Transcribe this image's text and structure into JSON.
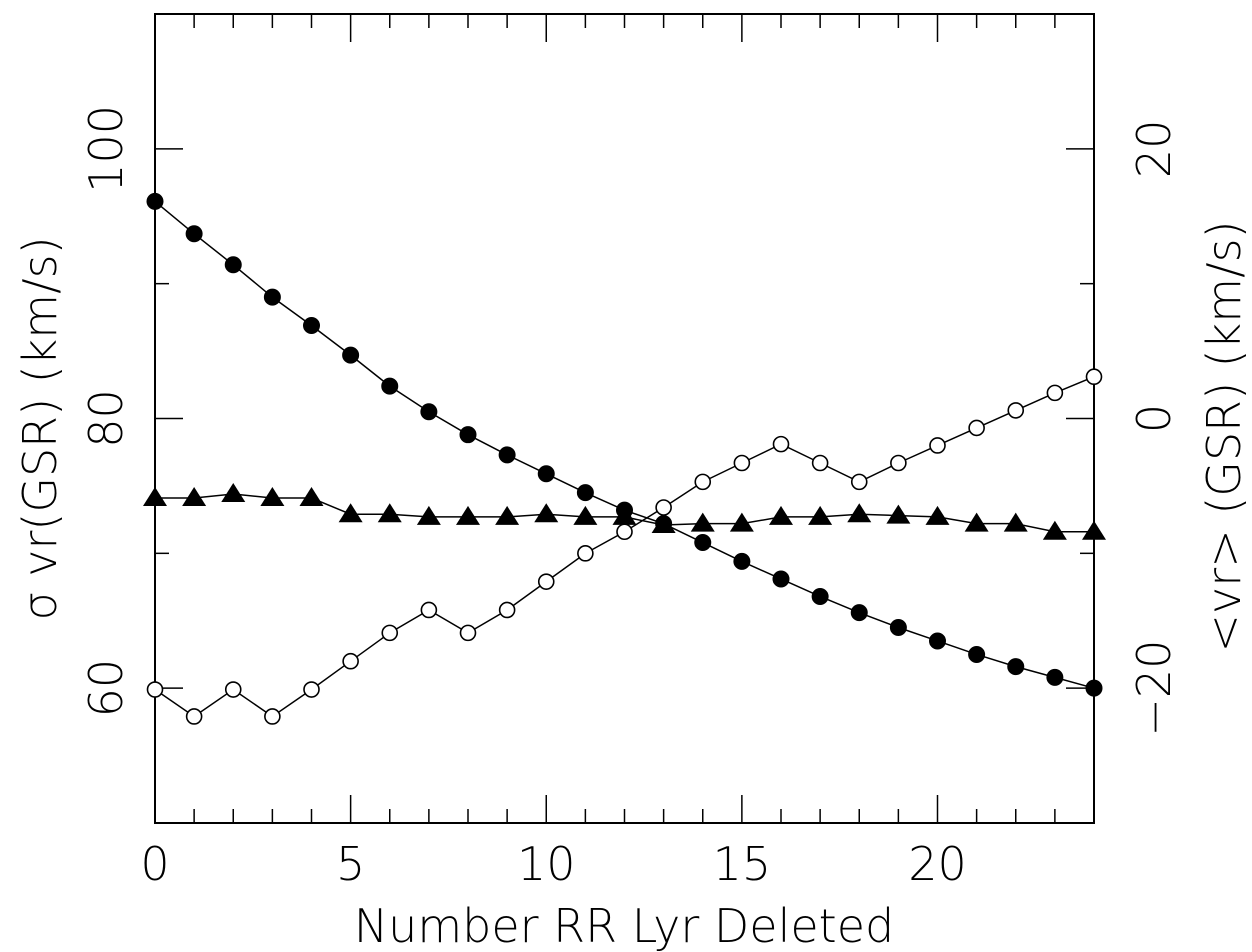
{
  "chart_data": {
    "type": "line",
    "title": "",
    "xlabel": "Number RR Lyr Deleted",
    "ylabel_left": "σ vr(GSR) (km/s)",
    "ylabel_right": "<vr> (GSR) (km/s)",
    "xlim": [
      0,
      24
    ],
    "ylim_left": [
      50,
      110
    ],
    "ylim_right": [
      -30,
      30
    ],
    "x_ticks": [
      0,
      5,
      10,
      15,
      20
    ],
    "left_ticks": [
      60,
      80,
      100
    ],
    "right_ticks": [
      -20,
      0,
      20
    ],
    "grid": false,
    "x": [
      0,
      1,
      2,
      3,
      4,
      5,
      6,
      7,
      8,
      9,
      10,
      11,
      12,
      13,
      14,
      15,
      16,
      17,
      18,
      19,
      20,
      21,
      22,
      23,
      24
    ],
    "series": [
      {
        "marker": "filled-circle",
        "axis": "left",
        "values": [
          96.1,
          93.7,
          91.4,
          89.0,
          86.9,
          84.7,
          82.4,
          80.5,
          78.8,
          77.3,
          75.9,
          74.5,
          73.2,
          72.2,
          70.8,
          69.4,
          68.1,
          66.8,
          65.6,
          64.5,
          63.5,
          62.5,
          61.6,
          60.8,
          60.0
        ]
      },
      {
        "marker": "triangle",
        "axis": "left",
        "values": [
          74.1,
          74.1,
          74.4,
          74.1,
          74.1,
          72.9,
          72.9,
          72.7,
          72.7,
          72.7,
          72.9,
          72.7,
          72.7,
          72.1,
          72.2,
          72.2,
          72.7,
          72.7,
          72.9,
          72.8,
          72.7,
          72.2,
          72.2,
          71.6,
          71.6
        ]
      },
      {
        "marker": "open-circle",
        "axis": "right",
        "values": [
          -20.1,
          -22.1,
          -20.1,
          -22.1,
          -20.1,
          -18.0,
          -15.9,
          -14.2,
          -15.9,
          -14.2,
          -12.1,
          -10.0,
          -8.4,
          -6.6,
          -4.7,
          -3.3,
          -1.9,
          -3.3,
          -4.7,
          -3.3,
          -2.0,
          -0.7,
          0.6,
          1.9,
          3.1
        ]
      }
    ]
  }
}
